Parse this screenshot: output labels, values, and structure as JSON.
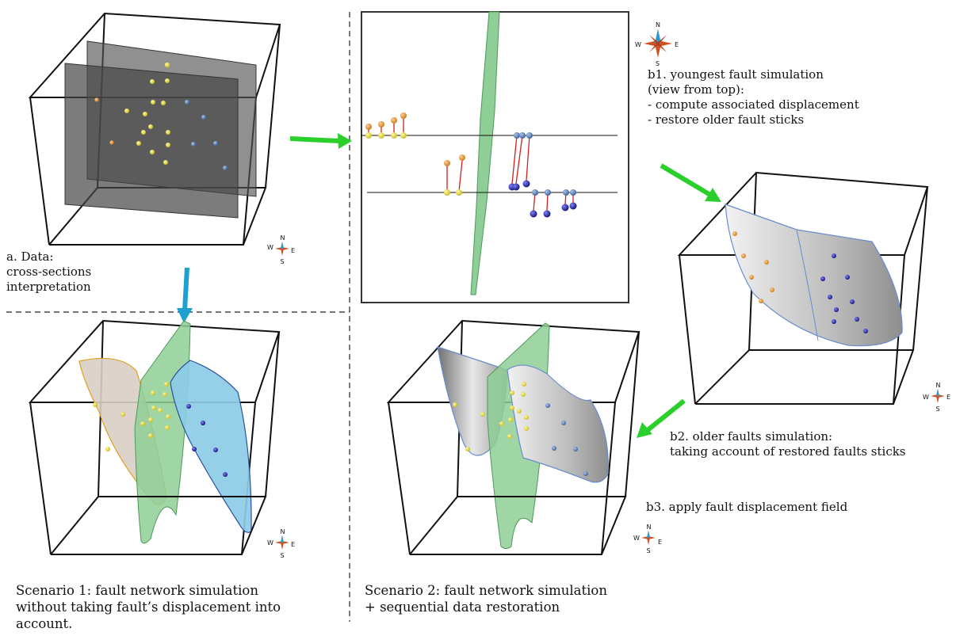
{
  "labels": {
    "a": "a. Data:\ncross-sections\ninterpretation",
    "b1": "b1. youngest fault simulation\n(view from top):\n- compute associated displacement\n- restore older fault sticks",
    "b2": "b2. older faults simulation:\ntaking account of restored faults sticks",
    "b3": "b3. apply fault displacement field",
    "scenario1": "Scenario 1: fault network simulation\nwithout taking fault’s displacement into\naccount.",
    "scenario2": "Scenario 2: fault network simulation\n+ sequential data restoration"
  },
  "compass": {
    "n": "N",
    "s": "S",
    "e": "E",
    "w": "W"
  },
  "colors": {
    "arrow_green": "#2bcf2b",
    "arrow_blue": "#1ea0d0",
    "fault_green": "#8fce96",
    "fault_blue": "#8ccbe6",
    "fault_grey": "#c9c9c9",
    "point_yellow": "#d8d02a",
    "point_orange": "#e0a030",
    "point_blue": "#2a2aa8",
    "point_steel": "#5a84b8",
    "displacement_red": "#d02020"
  }
}
